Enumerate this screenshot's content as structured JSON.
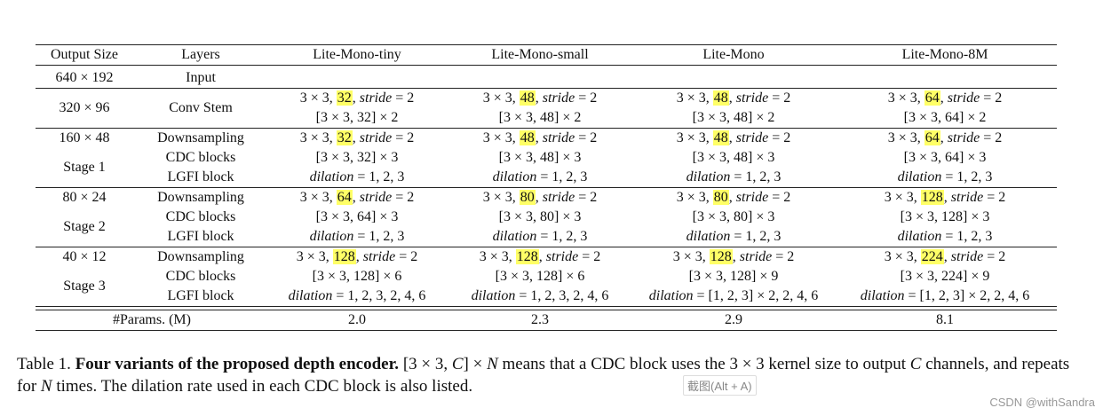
{
  "table": {
    "headers": [
      "Output Size",
      "Layers",
      "Lite-Mono-tiny",
      "Lite-Mono-small",
      "Lite-Mono",
      "Lite-Mono-8M"
    ],
    "input_row": {
      "size": "640 × 192",
      "layer": "Input"
    },
    "stem": {
      "size": "320 × 96",
      "layer": "Conv Stem",
      "cells": [
        {
          "ch": "32",
          "rep": "[3 × 3, 32] × 2"
        },
        {
          "ch": "48",
          "rep": "[3 × 3, 48] × 2"
        },
        {
          "ch": "48",
          "rep": "[3 × 3, 48] × 2"
        },
        {
          "ch": "64",
          "rep": "[3 × 3, 64] × 2"
        }
      ]
    },
    "stages": [
      {
        "size": "160 × 48",
        "name": "Stage 1",
        "layers": [
          "Downsampling",
          "CDC blocks",
          "LGFI block"
        ],
        "cells": [
          {
            "ch": "32",
            "cdc": "[3 × 3, 32] × 3",
            "dil": "= 1, 2, 3"
          },
          {
            "ch": "48",
            "cdc": "[3 × 3, 48] × 3",
            "dil": "= 1, 2, 3"
          },
          {
            "ch": "48",
            "cdc": "[3 × 3, 48] × 3",
            "dil": "= 1, 2, 3"
          },
          {
            "ch": "64",
            "cdc": "[3 × 3, 64] × 3",
            "dil": "= 1, 2, 3"
          }
        ]
      },
      {
        "size": "80 × 24",
        "name": "Stage 2",
        "layers": [
          "Downsampling",
          "CDC blocks",
          "LGFI block"
        ],
        "cells": [
          {
            "ch": "64",
            "cdc": "[3 × 3, 64] × 3",
            "dil": "= 1, 2, 3"
          },
          {
            "ch": "80",
            "cdc": "[3 × 3, 80] × 3",
            "dil": "= 1, 2, 3"
          },
          {
            "ch": "80",
            "cdc": "[3 × 3, 80] × 3",
            "dil": "= 1, 2, 3"
          },
          {
            "ch": "128",
            "cdc": "[3 × 3, 128] × 3",
            "dil": "= 1, 2, 3"
          }
        ]
      },
      {
        "size": "40 × 12",
        "name": "Stage 3",
        "layers": [
          "Downsampling",
          "CDC blocks",
          "LGFI block"
        ],
        "cells": [
          {
            "ch": "128",
            "cdc": "[3 × 3, 128] × 6",
            "dil": "= 1, 2, 3, 2, 4, 6"
          },
          {
            "ch": "128",
            "cdc": "[3 × 3, 128] × 6",
            "dil": "= 1, 2, 3, 2, 4, 6"
          },
          {
            "ch": "128",
            "cdc": "[3 × 3, 128] × 9",
            "dil": "= [1, 2, 3] × 2, 2, 4, 6"
          },
          {
            "ch": "224",
            "cdc": "[3 × 3, 224] × 9",
            "dil": "= [1, 2, 3] × 2, 2, 4, 6"
          }
        ]
      }
    ],
    "kernel_prefix": "3 × 3, ",
    "stride_word": "stride",
    "stride_value": " = 2",
    "dilation_word": "dilation",
    "params_label": "#Params. (M)",
    "params": [
      "2.0",
      "2.3",
      "2.9",
      "8.1"
    ]
  },
  "caption": {
    "label": "Table 1. ",
    "bold": "Four variants of the proposed depth encoder.",
    "rest_1": " [3 × 3, ",
    "C": "C",
    "rest_2": "] × ",
    "N": "N",
    "rest_3": " means that a CDC block uses the 3 × 3 kernel size to output ",
    "C2": "C",
    "rest_4": " channels, and repeats for ",
    "N2": "N",
    "rest_5": " times. The dilation rate used in each CDC block is also listed."
  },
  "overlay": {
    "tooltip": "截图(Alt + A)",
    "watermark": "CSDN @withSandra"
  },
  "colors": {
    "highlight": "#ffff66"
  }
}
